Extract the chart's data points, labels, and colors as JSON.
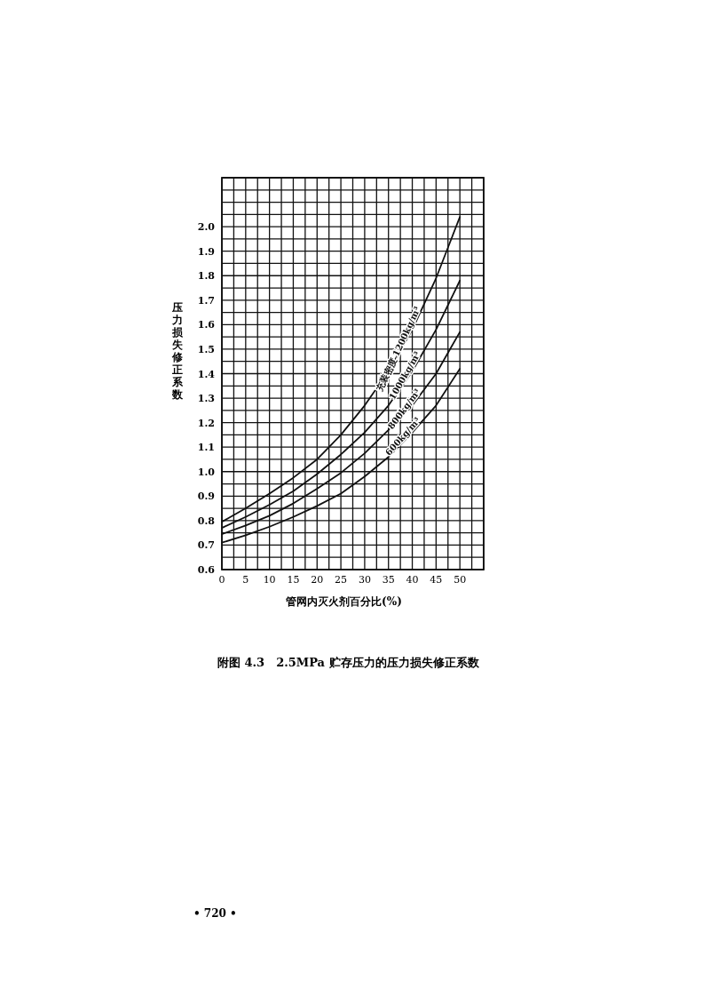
{
  "chart_data": {
    "type": "line",
    "title": "附图 4.3　2.5MPa 贮存压力的压力损失修正系数",
    "xlabel": "管网内灭火剂百分比(%)",
    "ylabel": "压力损失修正系数",
    "x": [
      0,
      5,
      10,
      15,
      20,
      25,
      30,
      35,
      40,
      45,
      50
    ],
    "series": [
      {
        "name": "充装密度 1200kg/m³",
        "color": "#111111",
        "values": [
          0.795,
          0.85,
          0.91,
          0.975,
          1.05,
          1.15,
          1.27,
          1.41,
          1.58,
          1.79,
          2.04
        ]
      },
      {
        "name": "1000kg/m³",
        "color": "#111111",
        "values": [
          0.77,
          0.815,
          0.865,
          0.92,
          0.99,
          1.07,
          1.16,
          1.27,
          1.41,
          1.58,
          1.78
        ]
      },
      {
        "name": "800kg/m³",
        "color": "#111111",
        "values": [
          0.745,
          0.78,
          0.82,
          0.87,
          0.93,
          0.995,
          1.075,
          1.17,
          1.27,
          1.4,
          1.57
        ]
      },
      {
        "name": "600kg/m³",
        "color": "#111111",
        "values": [
          0.71,
          0.74,
          0.775,
          0.815,
          0.86,
          0.91,
          0.98,
          1.06,
          1.16,
          1.27,
          1.42
        ]
      }
    ],
    "xlim": [
      0,
      55
    ],
    "ylim": [
      0.6,
      2.2
    ],
    "xticks": [
      0,
      5,
      10,
      15,
      20,
      25,
      30,
      35,
      40,
      45,
      50,
      {
        "value": 55,
        "label": null
      }
    ],
    "yticks": [
      {
        "value": 0.6,
        "label": "0.6"
      },
      {
        "value": 0.7,
        "label": "0.7"
      },
      {
        "value": 0.8,
        "label": "0.8"
      },
      {
        "value": 0.9,
        "label": "0.9"
      },
      {
        "value": 1.0,
        "label": "1.0"
      },
      {
        "value": 1.1,
        "label": "1.1"
      },
      {
        "value": 1.2,
        "label": "1.2"
      },
      {
        "value": 1.3,
        "label": "1.3"
      },
      {
        "value": 1.4,
        "label": "1.4"
      },
      {
        "value": 1.5,
        "label": "1.5"
      },
      {
        "value": 1.6,
        "label": "1.6"
      },
      {
        "value": 1.7,
        "label": "1.7"
      },
      {
        "value": 1.8,
        "label": "1.8"
      },
      {
        "value": 1.9,
        "label": "1.9"
      },
      {
        "value": 2.0,
        "label": "2.0"
      },
      {
        "value": 2.1,
        "label": null
      },
      {
        "value": 2.2,
        "label": null
      }
    ],
    "grid": true,
    "marker": "none",
    "line_style": "solid",
    "annotations": [
      "• 720 •"
    ]
  }
}
